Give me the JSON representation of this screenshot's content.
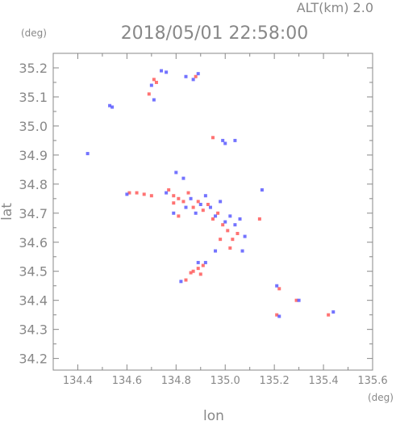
{
  "chart_data": {
    "type": "scatter",
    "header": "ALT(km)  2.0",
    "title": "2018/05/01 22:58:00",
    "xlabel": "lon",
    "ylabel": "lat",
    "x_unit": "(deg)",
    "y_unit": "(deg)",
    "xlim": [
      134.3,
      135.6
    ],
    "ylim": [
      34.16,
      35.25
    ],
    "xticks": [
      134.4,
      134.6,
      134.8,
      135.0,
      135.2,
      135.4,
      135.6
    ],
    "xtick_labels": [
      "134.4",
      "134.6",
      "134.8",
      "135.0",
      "135.2",
      "135.4",
      "135.6"
    ],
    "yticks": [
      34.2,
      34.3,
      34.4,
      34.5,
      34.6,
      34.7,
      34.8,
      34.9,
      35.0,
      35.1,
      35.2
    ],
    "ytick_labels": [
      "34.2",
      "34.3",
      "34.4",
      "34.5",
      "34.6",
      "34.7",
      "34.8",
      "34.9",
      "35.0",
      "35.1",
      "35.2"
    ],
    "grid": false,
    "colors": {
      "positive": "#ff5a5a",
      "negative": "#5a5aff",
      "axis": "#888888"
    },
    "series": [
      {
        "color": "#ff5a5a",
        "points": [
          [
            134.71,
            35.16
          ],
          [
            134.72,
            35.15
          ],
          [
            134.88,
            35.17
          ],
          [
            134.69,
            35.11
          ],
          [
            134.61,
            34.77
          ],
          [
            134.64,
            34.77
          ],
          [
            134.67,
            34.765
          ],
          [
            134.7,
            34.76
          ],
          [
            134.77,
            34.78
          ],
          [
            134.79,
            34.76
          ],
          [
            134.81,
            34.75
          ],
          [
            134.83,
            34.74
          ],
          [
            134.85,
            34.77
          ],
          [
            134.87,
            34.72
          ],
          [
            134.89,
            34.74
          ],
          [
            134.91,
            34.71
          ],
          [
            134.93,
            34.73
          ],
          [
            134.95,
            34.68
          ],
          [
            134.97,
            34.7
          ],
          [
            134.99,
            34.66
          ],
          [
            135.01,
            34.64
          ],
          [
            135.03,
            34.61
          ],
          [
            135.05,
            34.63
          ],
          [
            134.98,
            34.61
          ],
          [
            135.02,
            34.58
          ],
          [
            134.89,
            34.51
          ],
          [
            134.87,
            34.5
          ],
          [
            134.91,
            34.52
          ],
          [
            134.86,
            34.495
          ],
          [
            134.9,
            34.49
          ],
          [
            134.84,
            34.47
          ],
          [
            135.22,
            34.44
          ],
          [
            135.29,
            34.4
          ],
          [
            135.42,
            34.35
          ],
          [
            135.21,
            34.35
          ],
          [
            134.81,
            34.69
          ],
          [
            134.79,
            34.735
          ],
          [
            135.14,
            34.68
          ],
          [
            134.95,
            34.96
          ]
        ]
      },
      {
        "color": "#5a5aff",
        "points": [
          [
            134.74,
            35.19
          ],
          [
            134.76,
            35.185
          ],
          [
            134.89,
            35.18
          ],
          [
            134.87,
            35.16
          ],
          [
            134.84,
            35.17
          ],
          [
            134.7,
            35.14
          ],
          [
            134.71,
            35.09
          ],
          [
            134.53,
            35.07
          ],
          [
            134.54,
            35.065
          ],
          [
            134.44,
            34.905
          ],
          [
            134.99,
            34.95
          ],
          [
            135.0,
            34.94
          ],
          [
            135.04,
            34.95
          ],
          [
            134.8,
            34.84
          ],
          [
            134.83,
            34.82
          ],
          [
            134.76,
            34.77
          ],
          [
            134.6,
            34.765
          ],
          [
            134.84,
            34.72
          ],
          [
            134.86,
            34.75
          ],
          [
            134.88,
            34.7
          ],
          [
            134.9,
            34.73
          ],
          [
            134.92,
            34.76
          ],
          [
            134.94,
            34.72
          ],
          [
            134.96,
            34.69
          ],
          [
            134.98,
            34.74
          ],
          [
            135.0,
            34.67
          ],
          [
            135.02,
            34.69
          ],
          [
            135.04,
            34.66
          ],
          [
            135.06,
            34.68
          ],
          [
            135.08,
            34.62
          ],
          [
            134.96,
            34.57
          ],
          [
            135.07,
            34.57
          ],
          [
            134.92,
            34.53
          ],
          [
            134.89,
            34.53
          ],
          [
            134.82,
            34.465
          ],
          [
            135.15,
            34.78
          ],
          [
            135.22,
            34.345
          ],
          [
            135.3,
            34.4
          ],
          [
            135.44,
            34.36
          ],
          [
            135.21,
            34.45
          ],
          [
            134.79,
            34.7
          ]
        ]
      }
    ]
  }
}
